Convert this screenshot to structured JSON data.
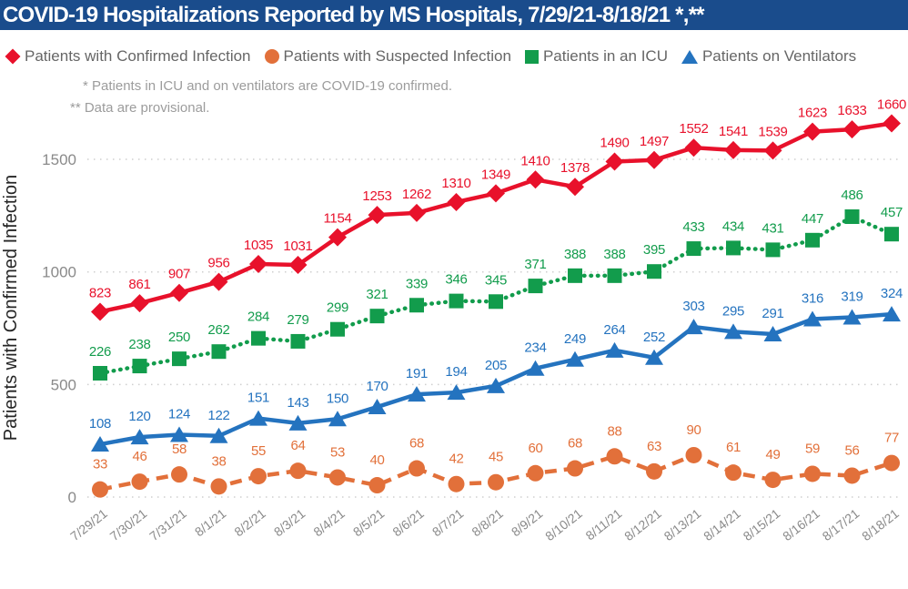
{
  "title": "COVID-19 Hospitalizations Reported by MS Hospitals, 7/29/21-8/18/21 *,**",
  "footnotes": [
    "* Patients in ICU and on ventilators are COVID-19 confirmed.",
    "** Data are provisional."
  ],
  "colors": {
    "title_bar_bg": "#1A4C8C",
    "title_text": "#FFFFFF",
    "confirmed_red": "#E8112B",
    "suspected_orange": "#E2703A",
    "icu_green": "#129C4C",
    "ventilators_blue": "#2473BF",
    "legend_text": "#666666",
    "footnote_text": "#9C9C9C",
    "axis_tick_text": "#8A8A8A",
    "y_axis_title_text": "#262626",
    "gridline": "#CFCFCF"
  },
  "chart_data": {
    "type": "line",
    "title": "COVID-19 Hospitalizations Reported by MS Hospitals, 7/29/21-8/18/21 *,**",
    "xlabel": "",
    "ylabel": "Patients with Confirmed Infection",
    "x": [
      "7/29/21",
      "7/30/21",
      "7/31/21",
      "8/1/21",
      "8/2/21",
      "8/3/21",
      "8/4/21",
      "8/5/21",
      "8/6/21",
      "8/7/21",
      "8/8/21",
      "8/9/21",
      "8/10/21",
      "8/11/21",
      "8/12/21",
      "8/13/21",
      "8/14/21",
      "8/15/21",
      "8/16/21",
      "8/17/21",
      "8/18/21"
    ],
    "yticks": [
      0,
      500,
      1000,
      1500
    ],
    "ylim": [
      0,
      1700
    ],
    "grid": "horizontal-dotted",
    "legend_position": "top",
    "data_labels": "shown above every point in series color",
    "series": [
      {
        "name": "Patients with Confirmed Infection",
        "marker": "diamond",
        "line_style": "solid",
        "color": "#E8112B",
        "axis": "left",
        "values": [
          823,
          861,
          907,
          956,
          1035,
          1031,
          1154,
          1253,
          1262,
          1310,
          1349,
          1410,
          1378,
          1490,
          1497,
          1552,
          1541,
          1539,
          1623,
          1633,
          1660
        ]
      },
      {
        "name": "Patients with Suspected Infection",
        "marker": "circle",
        "line_style": "dashed",
        "color": "#E2703A",
        "axis": "hidden-secondary",
        "values": [
          33,
          46,
          58,
          38,
          55,
          64,
          53,
          40,
          68,
          42,
          45,
          60,
          68,
          88,
          63,
          90,
          61,
          49,
          59,
          56,
          77
        ]
      },
      {
        "name": "Patients in an ICU",
        "marker": "square",
        "line_style": "dotted",
        "color": "#129C4C",
        "axis": "hidden-secondary",
        "values": [
          226,
          238,
          250,
          262,
          284,
          279,
          299,
          321,
          339,
          346,
          345,
          371,
          388,
          388,
          395,
          433,
          434,
          431,
          447,
          486,
          457
        ]
      },
      {
        "name": "Patients on Ventilators",
        "marker": "triangle",
        "line_style": "solid",
        "color": "#2473BF",
        "axis": "hidden-secondary",
        "values": [
          108,
          120,
          124,
          122,
          151,
          143,
          150,
          170,
          191,
          194,
          205,
          234,
          249,
          264,
          252,
          303,
          295,
          291,
          316,
          319,
          324
        ]
      }
    ]
  }
}
